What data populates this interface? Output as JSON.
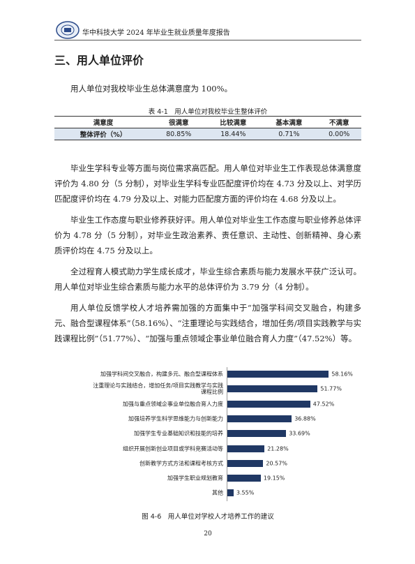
{
  "header": {
    "title": "华中科技大学 2024 年毕业生就业质量年度报告"
  },
  "heading": "三、用人单位评价",
  "intro": "用人单位对我校毕业生总体满意度为 100%。",
  "table": {
    "caption": "表 4-1　用人单位对我校毕业生整体评价",
    "header": [
      "满意度",
      "很满意",
      "比较满意",
      "基本满意",
      "不满意"
    ],
    "rows": [
      [
        "整体评价（%）",
        "80.85%",
        "18.44%",
        "0.71%",
        "0.00%"
      ]
    ]
  },
  "paragraphs": [
    "毕业生学科专业等方面与岗位需求高匹配。用人单位对毕业生工作表现总体满意度评价为 4.80 分（5 分制），对毕业生学科专业匹配度评价均在 4.73 分及以上、对学历匹配度评价均在 4.79 分及以上、对能力匹配度方面的评价均在 4.68 分及以上。",
    "毕业生工作态度与职业修养获好评。用人单位对毕业生工作态度与职业修养总体评价为 4.78 分（5 分制），对毕业生政治素养、责任意识、主动性、创新精神、身心素质评价均在 4.75 分及以上。",
    "全过程育人模式助力学生成长成才，毕业生综合素质与能力发展水平获广泛认可。用人单位对毕业生综合素质与能力水平的总体评价为 3.79 分（4 分制）。",
    "用人单位反馈学校人才培养需加强的方面集中于“加强学科间交叉融合，构建多元、融合型课程体系”（58.16%）、“注重理论与实践结合，增加任务/项目实践教学与实践课程比例”（51.77%）、“加强与重点领域企事业单位融合育人力度”（47.52%）等。"
  ],
  "chart_data": {
    "type": "bar",
    "orientation": "horizontal",
    "title": "图 4-6　用人单位对学校人才培养工作的建议",
    "categories": [
      "加强学科间交叉融合，构建多元、融合型课程体系",
      "注重理论与实践结合，增加任务/项目实践教学与实践课程比例",
      "加强与重点领域企事业单位融合育人力度",
      "加强培养学生科学思维能力与创新能力",
      "加强学生专业基础知识和技能的培养",
      "组织开展创新创业项目或学科竞赛活动等",
      "创新教学方式方法和课程考核方式",
      "加强学生职业规划教育",
      "其他"
    ],
    "values": [
      58.16,
      51.77,
      47.52,
      36.88,
      33.69,
      21.28,
      20.57,
      19.15,
      3.55
    ],
    "value_labels": [
      "58.16%",
      "51.77%",
      "47.52%",
      "36.88%",
      "33.69%",
      "21.28%",
      "20.57%",
      "19.15%",
      "3.55%"
    ],
    "color": "#203864"
  },
  "page_number": "20"
}
